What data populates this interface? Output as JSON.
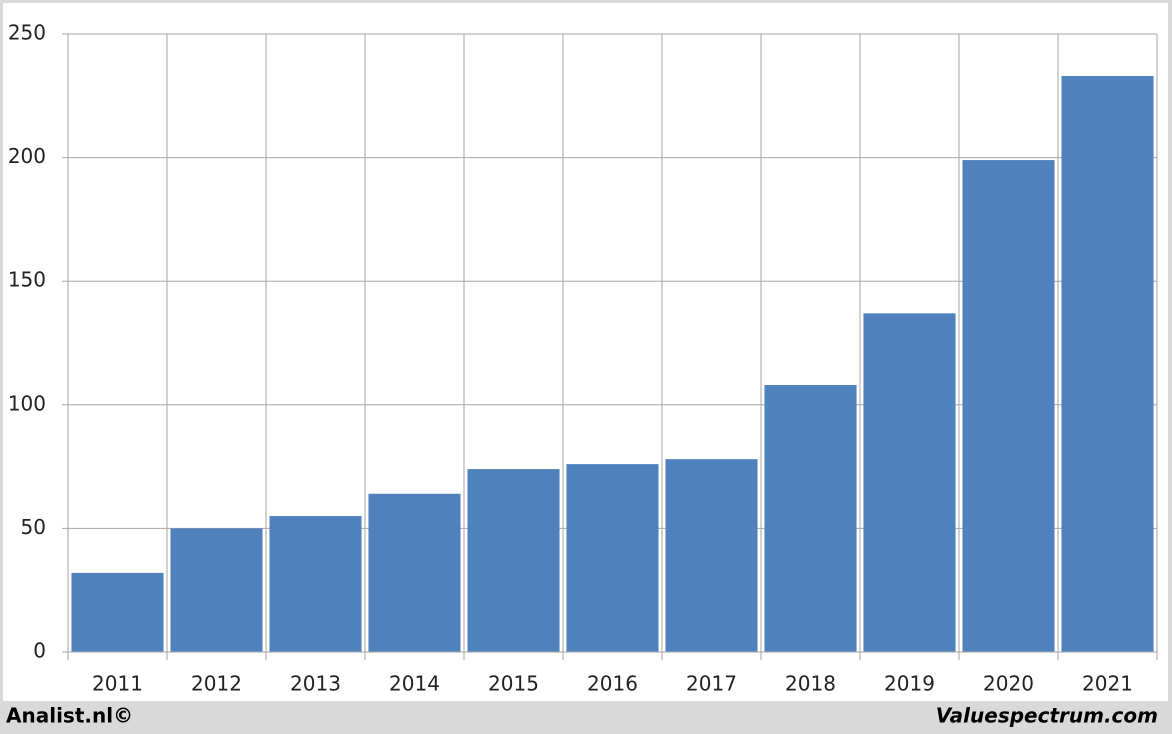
{
  "chart_data": {
    "type": "bar",
    "categories": [
      "2011",
      "2012",
      "2013",
      "2014",
      "2015",
      "2016",
      "2017",
      "2018",
      "2019",
      "2020",
      "2021"
    ],
    "values": [
      32,
      50,
      55,
      64,
      74,
      76,
      78,
      108,
      137,
      199,
      233
    ],
    "color": "#4f81bd",
    "ylim": [
      0,
      250
    ],
    "yticks": [
      0,
      50,
      100,
      150,
      200,
      250
    ],
    "grid": true
  },
  "footer": {
    "left": "Analist.nl©",
    "right": "Valuespectrum.com"
  }
}
